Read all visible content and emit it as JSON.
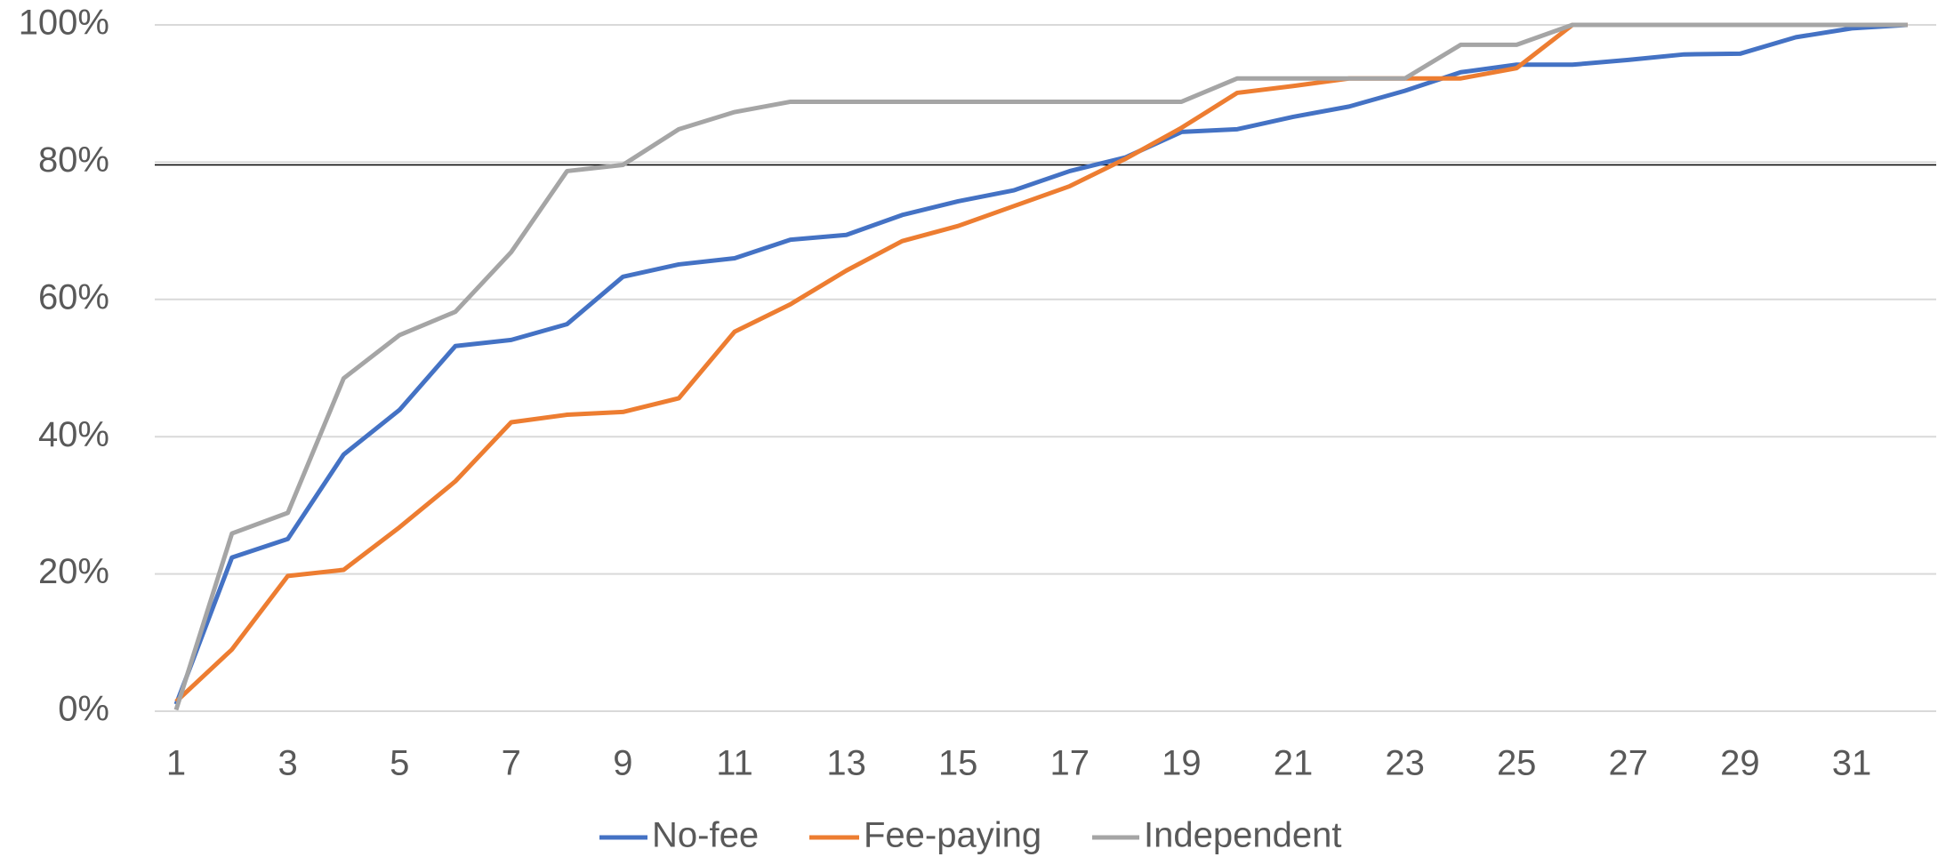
{
  "chart_data": {
    "type": "line",
    "categories": [
      "1",
      null,
      "3",
      null,
      "5",
      null,
      "7",
      null,
      "9",
      null,
      "11",
      null,
      "13",
      null,
      "15",
      null,
      "17",
      null,
      "19",
      null,
      "21",
      null,
      "23",
      null,
      "25",
      null,
      "27",
      null,
      "29",
      null,
      "31",
      null
    ],
    "series": [
      {
        "name": "No-fee",
        "color": "#4472c4",
        "values": [
          1,
          22.4,
          25.1,
          37.4,
          43.9,
          53.2,
          54.1,
          56.4,
          63.3,
          65.1,
          66.0,
          68.7,
          69.4,
          72.3,
          74.3,
          75.9,
          78.7,
          80.7,
          84.4,
          84.8,
          86.6,
          88.1,
          90.4,
          93.1,
          94.2,
          94.2,
          94.9,
          95.7,
          95.8,
          98.2,
          99.5,
          100
        ]
      },
      {
        "name": "Fee-paying",
        "color": "#ed7d31",
        "values": [
          1.4,
          9.0,
          19.7,
          20.6,
          26.8,
          33.5,
          42.1,
          43.2,
          43.6,
          45.6,
          55.3,
          59.3,
          64.2,
          68.5,
          70.7,
          73.6,
          76.5,
          80.5,
          85.0,
          90.1,
          91.1,
          92.2,
          92.2,
          92.2,
          93.7,
          100,
          100,
          100,
          100,
          100,
          100,
          100
        ]
      },
      {
        "name": "Independent",
        "color": "#a5a5a5",
        "values": [
          0.2,
          25.9,
          28.9,
          48.5,
          54.8,
          58.2,
          66.9,
          78.7,
          79.6,
          84.8,
          87.3,
          88.8,
          88.8,
          88.8,
          88.8,
          88.8,
          88.8,
          88.8,
          88.8,
          92.2,
          92.2,
          92.2,
          92.2,
          97.1,
          97.1,
          100,
          100,
          100,
          100,
          100,
          100,
          100
        ]
      }
    ],
    "ylim": [
      0,
      100
    ],
    "yticks": [
      {
        "value": 0,
        "label": "0%"
      },
      {
        "value": 20,
        "label": "20%"
      },
      {
        "value": 40,
        "label": "40%"
      },
      {
        "value": 60,
        "label": "60%"
      },
      {
        "value": 80,
        "label": "80%"
      },
      {
        "value": 100,
        "label": "100%"
      }
    ],
    "grid": true,
    "reference_line": {
      "value": 79.6,
      "color": "#000000"
    },
    "legend": "bottom"
  }
}
